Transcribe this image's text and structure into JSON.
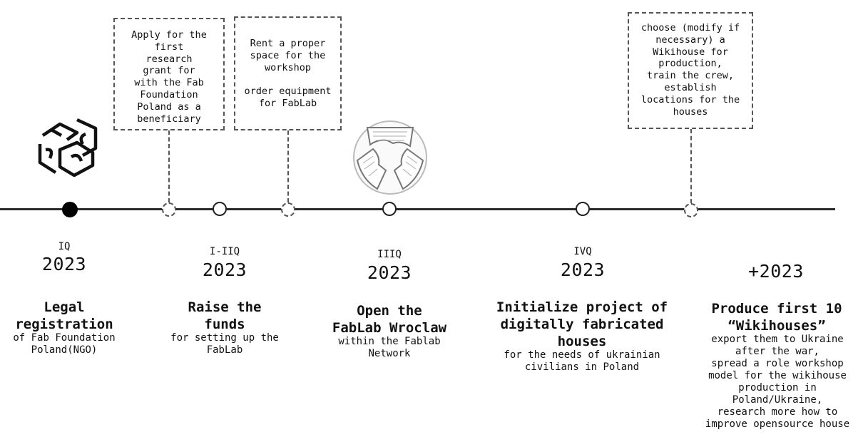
{
  "notes": {
    "grant": "Apply for the\nfirst\nresearch\ngrant for\nwith the Fab\nFoundation\nPoland as a\nbeneficiary",
    "space": "Rent a proper\nspace for the\nworkshop\n\norder equipment\nfor FabLab",
    "wikihouse": "choose (modify if\nnecessary) a\nWikihouse for\nproduction,\ntrain the crew,\nestablish\nlocations for the\nhouses"
  },
  "milestones": [
    {
      "quarter": "IQ",
      "year": "2023",
      "title": "Legal\nregistration",
      "desc": "of Fab Foundation\nPoland(NGO)"
    },
    {
      "quarter": "I-IIQ",
      "year": "2023",
      "title": "Raise the\nfunds",
      "desc": "for setting up the\nFabLab"
    },
    {
      "quarter": "IIIQ",
      "year": "2023",
      "title": "Open the\nFabLab Wroclaw",
      "desc": "within the Fablab\nNetwork"
    },
    {
      "quarter": "IVQ",
      "year": "2023",
      "title": "Initialize project of\ndigitally fabricated\nhouses",
      "desc": "for the needs of ukrainian\ncivilians in Poland"
    },
    {
      "quarter": "",
      "year": "+2023",
      "title": "Produce first 10\n“Wikihouses”",
      "desc": "export them to Ukraine\nafter the war,\nspread a role workshop\nmodel for the wikihouse\nproduction in\nPoland/Ukraine,\nresearch more how to\nimprove opensource house"
    }
  ]
}
